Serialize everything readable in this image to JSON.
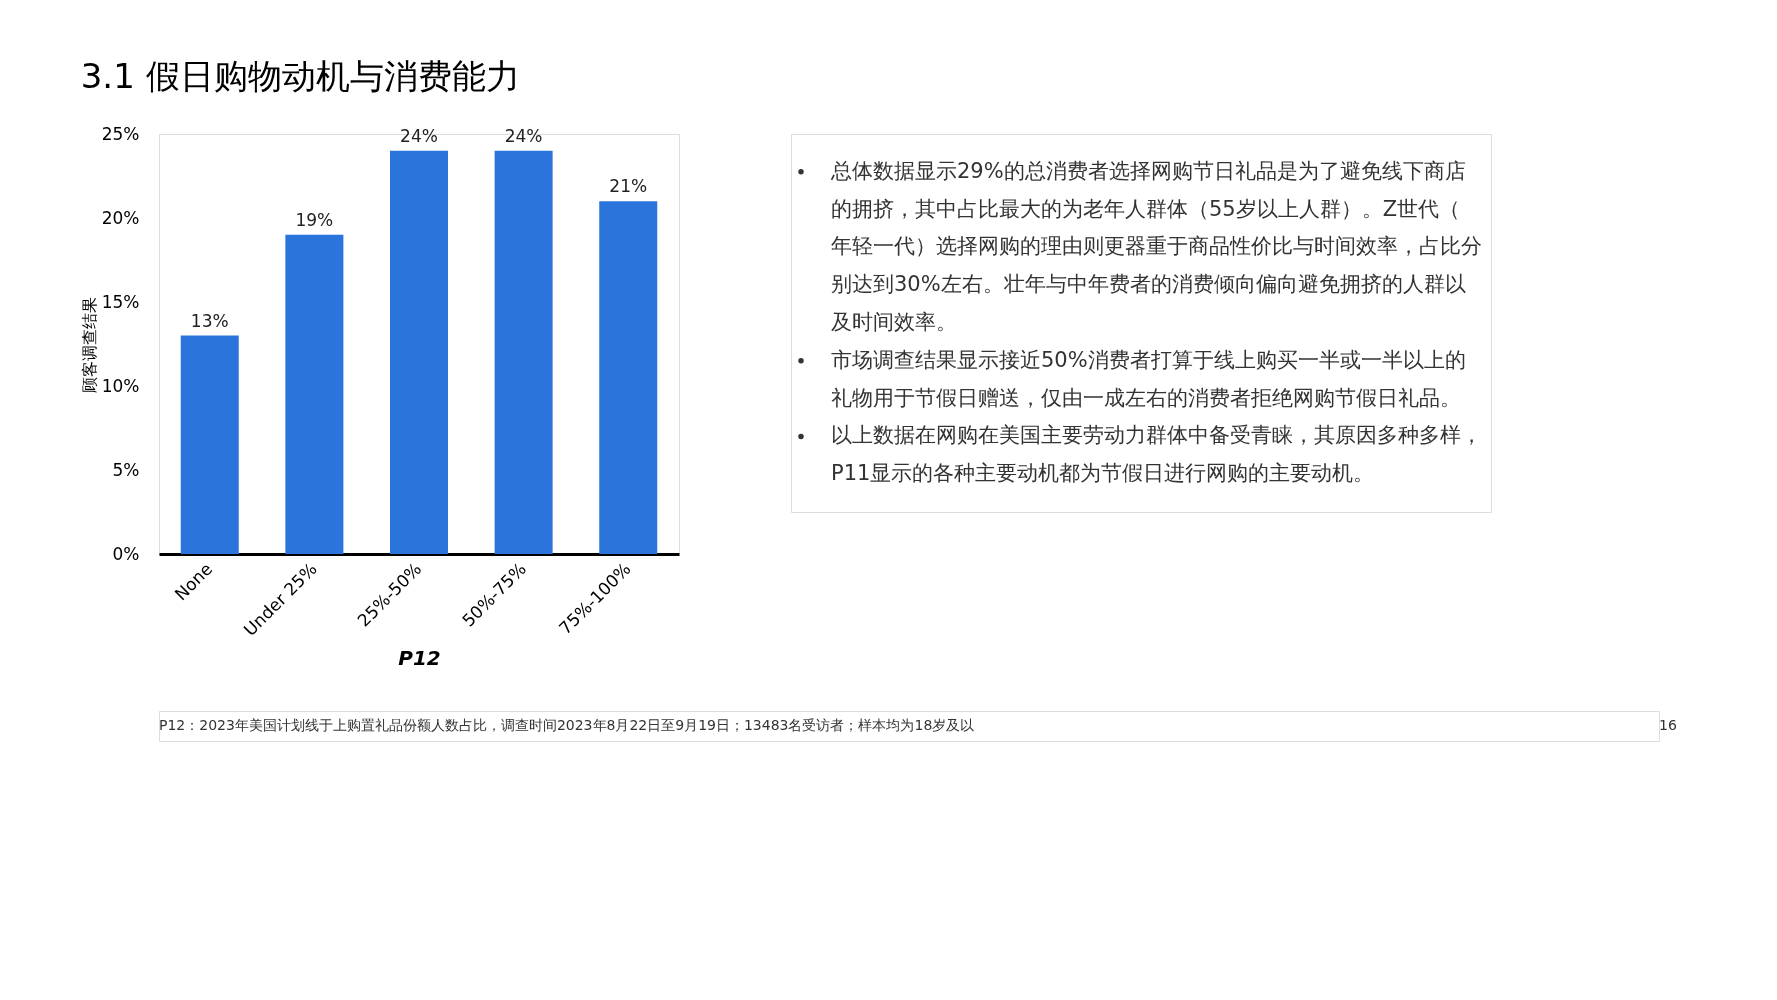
{
  "chart_data": {
    "type": "bar",
    "title": "3.1 假日购物动机与消费能力",
    "xlabel": "P12",
    "ylabel": "顾客调查结果",
    "categories": [
      "None",
      "Under 25%",
      "25%-50%",
      "50%-75%",
      "75%-100%"
    ],
    "values": [
      13,
      19,
      24,
      24,
      21
    ],
    "color": "#2a74db",
    "data_labels": true,
    "value_labels": [
      "13%",
      "19%",
      "24%",
      "24%",
      "21%"
    ],
    "ylim": [
      0,
      25
    ],
    "yticks": [
      {
        "value": 0,
        "label": "0%"
      },
      {
        "value": 5,
        "label": "5%"
      },
      {
        "value": 10,
        "label": "10%"
      },
      {
        "value": 15,
        "label": "15%"
      },
      {
        "value": 20,
        "label": "20%"
      },
      {
        "value": 25,
        "label": "25%"
      }
    ],
    "annotations": [
      "总体数据显示29%的总消费者选择网购节日礼品是为了避免线下商店的拥挤，其中占比最大的为老年人群体（55岁以上人群）。Z世代（年轻一代）选择网购的理由则更器重于商品性价比与时间效率，占比分别达到30%左右。壮年与中年费者的消费倾向偏向避免拥挤的人群以及时间效率。",
      "市场调查结果显示接近50%消费者打算于线上购买一半或一半以上的礼物用于节假日赠送，仅由一成左右的消费者拒绝网购节假日礼品。",
      "以上数据在网购在美国主要劳动力群体中备受青睐，其原因多种多样，P11显示的各种主要动机都为节假日进行网购的主要动机。",
      "P12：2023年美国计划线于上购置礼品份额人数占比，调查时间2023年8月22日至9月19日；13483名受访者；样本均为18岁及以",
      "16"
    ]
  }
}
